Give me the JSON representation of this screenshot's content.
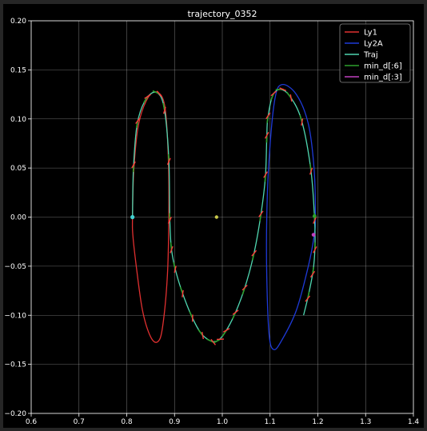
{
  "chart_data": {
    "type": "line",
    "title": "trajectory_0352",
    "xlabel": "",
    "ylabel": "",
    "xlim": [
      0.6,
      1.4
    ],
    "ylim": [
      -0.2,
      0.2
    ],
    "x_ticks": [
      0.6,
      0.7,
      0.8,
      0.9,
      1.0,
      1.1,
      1.2,
      1.3,
      1.4
    ],
    "x_tick_labels": [
      "0.6",
      "0.7",
      "0.8",
      "0.9",
      "1.0",
      "1.1",
      "1.2",
      "1.3",
      "1.4"
    ],
    "y_ticks": [
      -0.2,
      -0.15,
      -0.1,
      -0.05,
      0.0,
      0.05,
      0.1,
      0.15,
      0.2
    ],
    "y_tick_labels": [
      "−0.20",
      "−0.15",
      "−0.10",
      "−0.05",
      "0.00",
      "0.05",
      "0.10",
      "0.15",
      "0.20"
    ],
    "grid": true,
    "legend_position": "top-right",
    "colors": {
      "Ly1": "#e03030",
      "Ly2A": "#1e3ad8",
      "Traj": "#4fd6b0",
      "min_d6": "#2ea02e",
      "min_d3": "#c040c0",
      "arrow": "#ff3a3a",
      "center_dot": "#c8c84a",
      "marker": "#40d0d0"
    },
    "series": [
      {
        "name": "Ly1",
        "type": "closed-orbit",
        "x": [
          0.812,
          0.815,
          0.825,
          0.845,
          0.865,
          0.88,
          0.887,
          0.888,
          0.885,
          0.875,
          0.865,
          0.85,
          0.833,
          0.82,
          0.813,
          0.812
        ],
        "y": [
          0.0,
          0.05,
          0.095,
          0.122,
          0.127,
          0.112,
          0.06,
          0.0,
          -0.06,
          -0.112,
          -0.127,
          -0.122,
          -0.095,
          -0.05,
          -0.02,
          0.0
        ]
      },
      {
        "name": "Ly2A",
        "type": "closed-orbit",
        "x": [
          1.195,
          1.192,
          1.18,
          1.155,
          1.125,
          1.11,
          1.098,
          1.093,
          1.093,
          1.098,
          1.108,
          1.125,
          1.155,
          1.18,
          1.192,
          1.195
        ],
        "y": [
          0.0,
          0.05,
          0.095,
          0.125,
          0.135,
          0.12,
          0.06,
          0.0,
          -0.06,
          -0.12,
          -0.135,
          -0.125,
          -0.095,
          -0.05,
          -0.02,
          0.0
        ]
      },
      {
        "name": "Traj",
        "type": "path",
        "x": [
          0.812,
          0.814,
          0.822,
          0.84,
          0.862,
          0.878,
          0.888,
          0.89,
          0.893,
          0.9,
          0.915,
          0.935,
          0.955,
          0.975,
          0.99,
          1.005,
          1.025,
          1.045,
          1.065,
          1.08,
          1.09,
          1.093,
          1.095,
          1.105,
          1.12,
          1.14,
          1.165,
          1.185,
          1.193,
          1.194,
          1.19,
          1.18,
          1.17
        ],
        "y": [
          0.0,
          0.05,
          0.095,
          0.12,
          0.127,
          0.112,
          0.06,
          0.0,
          -0.03,
          -0.05,
          -0.075,
          -0.1,
          -0.118,
          -0.126,
          -0.126,
          -0.118,
          -0.1,
          -0.075,
          -0.04,
          0.0,
          0.04,
          0.08,
          0.1,
          0.123,
          0.13,
          0.124,
          0.1,
          0.05,
          0.0,
          -0.03,
          -0.055,
          -0.08,
          -0.1
        ]
      }
    ],
    "markers": [
      {
        "name": "min_d[:6]",
        "x": 1.193,
        "y": 0.001
      },
      {
        "name": "min_d[:3]",
        "x": 1.191,
        "y": -0.018
      }
    ],
    "extra_points": [
      {
        "label": "start",
        "x": 0.812,
        "y": 0.0
      },
      {
        "label": "center",
        "x": 0.988,
        "y": 0.0
      }
    ],
    "legend": [
      "Ly1",
      "Ly2A",
      "Traj",
      "min_d[:6]",
      "min_d[:3]"
    ]
  }
}
